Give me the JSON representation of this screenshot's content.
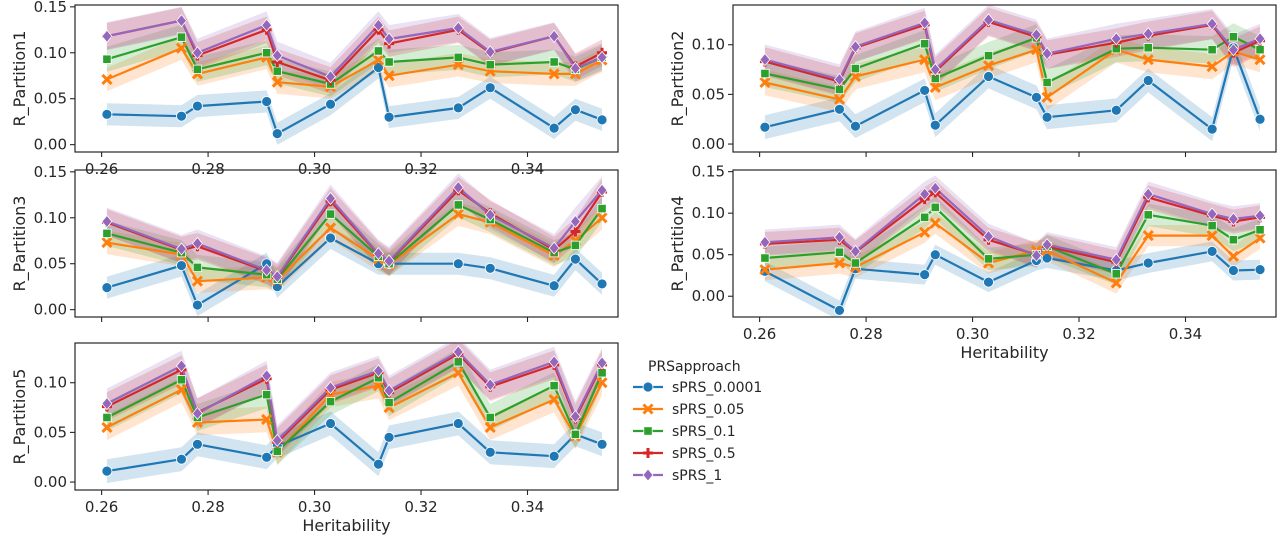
{
  "chart_data": [
    {
      "type": "line",
      "ylabel": "R_Partition1",
      "xlabel": "",
      "xlim": [
        0.255,
        0.357
      ],
      "ylim": [
        -0.008,
        0.152
      ],
      "xticks": [
        0.26,
        0.28,
        0.3,
        0.32,
        0.34
      ],
      "yticks": [
        0.0,
        0.05,
        0.1,
        0.15
      ],
      "x": [
        0.261,
        0.275,
        0.278,
        0.291,
        0.293,
        0.303,
        0.312,
        0.314,
        0.327,
        0.333,
        0.345,
        0.349,
        0.354
      ],
      "series": [
        {
          "name": "sPRS_0.0001",
          "values": [
            0.033,
            0.031,
            0.042,
            0.047,
            0.012,
            0.044,
            0.084,
            0.03,
            0.04,
            0.062,
            0.018,
            0.038,
            0.027
          ]
        },
        {
          "name": "sPRS_0.05",
          "values": [
            0.071,
            0.105,
            0.077,
            0.095,
            0.068,
            0.063,
            0.092,
            0.075,
            0.087,
            0.08,
            0.077,
            0.077,
            0.092
          ]
        },
        {
          "name": "sPRS_0.1",
          "values": [
            0.093,
            0.117,
            0.082,
            0.1,
            0.08,
            0.066,
            0.102,
            0.09,
            0.095,
            0.087,
            0.09,
            0.082,
            0.095
          ]
        },
        {
          "name": "sPRS_0.5",
          "values": [
            0.118,
            0.135,
            0.097,
            0.125,
            0.09,
            0.07,
            0.125,
            0.11,
            0.125,
            0.1,
            0.118,
            0.085,
            0.1
          ]
        },
        {
          "name": "sPRS_1",
          "values": [
            0.118,
            0.135,
            0.1,
            0.13,
            0.097,
            0.074,
            0.13,
            0.115,
            0.127,
            0.101,
            0.118,
            0.083,
            0.095
          ]
        }
      ]
    },
    {
      "type": "line",
      "ylabel": "R_Partition2",
      "xlabel": "",
      "xlim": [
        0.255,
        0.357
      ],
      "ylim": [
        -0.008,
        0.14
      ],
      "xticks": [
        0.26,
        0.28,
        0.3,
        0.32,
        0.34
      ],
      "yticks": [
        0.0,
        0.05,
        0.1
      ],
      "x": [
        0.261,
        0.275,
        0.278,
        0.291,
        0.293,
        0.303,
        0.312,
        0.314,
        0.327,
        0.333,
        0.345,
        0.349,
        0.354
      ],
      "series": [
        {
          "name": "sPRS_0.0001",
          "values": [
            0.017,
            0.035,
            0.018,
            0.054,
            0.019,
            0.068,
            0.047,
            0.027,
            0.034,
            0.064,
            0.015,
            0.097,
            0.025
          ]
        },
        {
          "name": "sPRS_0.05",
          "values": [
            0.062,
            0.045,
            0.068,
            0.085,
            0.057,
            0.079,
            0.095,
            0.047,
            0.095,
            0.085,
            0.078,
            0.093,
            0.085
          ]
        },
        {
          "name": "sPRS_0.1",
          "values": [
            0.071,
            0.055,
            0.076,
            0.101,
            0.066,
            0.089,
            0.107,
            0.062,
            0.096,
            0.097,
            0.095,
            0.108,
            0.095
          ]
        },
        {
          "name": "sPRS_0.5",
          "values": [
            0.083,
            0.063,
            0.097,
            0.12,
            0.073,
            0.123,
            0.108,
            0.09,
            0.102,
            0.109,
            0.12,
            0.092,
            0.104
          ]
        },
        {
          "name": "sPRS_1",
          "values": [
            0.085,
            0.065,
            0.098,
            0.122,
            0.075,
            0.125,
            0.11,
            0.091,
            0.106,
            0.111,
            0.121,
            0.095,
            0.106
          ]
        }
      ]
    },
    {
      "type": "line",
      "ylabel": "R_Partition3",
      "xlabel": "",
      "xlim": [
        0.255,
        0.357
      ],
      "ylim": [
        -0.008,
        0.152
      ],
      "xticks": [
        0.26,
        0.28,
        0.3,
        0.32,
        0.34
      ],
      "yticks": [
        0.0,
        0.05,
        0.1,
        0.15
      ],
      "x": [
        0.261,
        0.275,
        0.278,
        0.291,
        0.293,
        0.303,
        0.312,
        0.314,
        0.327,
        0.333,
        0.345,
        0.349,
        0.354
      ],
      "series": [
        {
          "name": "sPRS_0.0001",
          "values": [
            0.024,
            0.048,
            0.005,
            0.05,
            0.025,
            0.078,
            0.05,
            0.05,
            0.05,
            0.045,
            0.026,
            0.055,
            0.028
          ]
        },
        {
          "name": "sPRS_0.05",
          "values": [
            0.073,
            0.06,
            0.031,
            0.035,
            0.032,
            0.089,
            0.055,
            0.049,
            0.104,
            0.095,
            0.059,
            0.075,
            0.1
          ]
        },
        {
          "name": "sPRS_0.1",
          "values": [
            0.083,
            0.062,
            0.046,
            0.038,
            0.033,
            0.104,
            0.058,
            0.05,
            0.114,
            0.098,
            0.062,
            0.07,
            0.11
          ]
        },
        {
          "name": "sPRS_0.5",
          "values": [
            0.095,
            0.065,
            0.069,
            0.042,
            0.035,
            0.118,
            0.06,
            0.052,
            0.13,
            0.105,
            0.065,
            0.085,
            0.128
          ]
        },
        {
          "name": "sPRS_1",
          "values": [
            0.096,
            0.066,
            0.072,
            0.043,
            0.036,
            0.121,
            0.061,
            0.053,
            0.133,
            0.103,
            0.067,
            0.096,
            0.13
          ]
        }
      ]
    },
    {
      "type": "line",
      "ylabel": "R_Partition4",
      "xlabel": "Heritability",
      "xlim": [
        0.255,
        0.357
      ],
      "ylim": [
        -0.025,
        0.152
      ],
      "xticks": [
        0.26,
        0.28,
        0.3,
        0.32,
        0.34
      ],
      "yticks": [
        0.0,
        0.05,
        0.1,
        0.15
      ],
      "x": [
        0.261,
        0.275,
        0.278,
        0.291,
        0.293,
        0.303,
        0.312,
        0.314,
        0.327,
        0.333,
        0.345,
        0.349,
        0.354
      ],
      "series": [
        {
          "name": "sPRS_0.0001",
          "values": [
            0.03,
            -0.017,
            0.033,
            0.026,
            0.05,
            0.017,
            0.043,
            0.046,
            0.031,
            0.04,
            0.054,
            0.031,
            0.032
          ]
        },
        {
          "name": "sPRS_0.05",
          "values": [
            0.032,
            0.04,
            0.035,
            0.077,
            0.088,
            0.04,
            0.055,
            0.055,
            0.016,
            0.073,
            0.073,
            0.048,
            0.07
          ]
        },
        {
          "name": "sPRS_0.1",
          "values": [
            0.046,
            0.053,
            0.04,
            0.095,
            0.107,
            0.045,
            0.05,
            0.06,
            0.027,
            0.098,
            0.085,
            0.068,
            0.08
          ]
        },
        {
          "name": "sPRS_0.5",
          "values": [
            0.063,
            0.068,
            0.053,
            0.117,
            0.125,
            0.068,
            0.05,
            0.06,
            0.041,
            0.119,
            0.097,
            0.09,
            0.095
          ]
        },
        {
          "name": "sPRS_1",
          "values": [
            0.065,
            0.071,
            0.054,
            0.123,
            0.13,
            0.072,
            0.049,
            0.062,
            0.044,
            0.123,
            0.099,
            0.093,
            0.097
          ]
        }
      ]
    },
    {
      "type": "line",
      "ylabel": "R_Partition5",
      "xlabel": "Heritability",
      "xlim": [
        0.255,
        0.357
      ],
      "ylim": [
        -0.008,
        0.14
      ],
      "xticks": [
        0.26,
        0.28,
        0.3,
        0.32,
        0.34
      ],
      "yticks": [
        0.0,
        0.05,
        0.1
      ],
      "x": [
        0.261,
        0.275,
        0.278,
        0.291,
        0.293,
        0.303,
        0.312,
        0.314,
        0.327,
        0.333,
        0.345,
        0.349,
        0.354
      ],
      "series": [
        {
          "name": "sPRS_0.0001",
          "values": [
            0.011,
            0.023,
            0.038,
            0.025,
            0.036,
            0.059,
            0.018,
            0.045,
            0.059,
            0.03,
            0.026,
            0.048,
            0.038
          ]
        },
        {
          "name": "sPRS_0.05",
          "values": [
            0.055,
            0.093,
            0.06,
            0.063,
            0.03,
            0.088,
            0.097,
            0.075,
            0.11,
            0.055,
            0.083,
            0.046,
            0.1
          ]
        },
        {
          "name": "sPRS_0.1",
          "values": [
            0.065,
            0.103,
            0.065,
            0.088,
            0.031,
            0.081,
            0.105,
            0.08,
            0.121,
            0.065,
            0.097,
            0.048,
            0.11
          ]
        },
        {
          "name": "sPRS_0.5",
          "values": [
            0.076,
            0.113,
            0.07,
            0.104,
            0.04,
            0.093,
            0.11,
            0.09,
            0.129,
            0.096,
            0.118,
            0.064,
            0.118
          ]
        },
        {
          "name": "sPRS_1",
          "values": [
            0.079,
            0.117,
            0.069,
            0.107,
            0.042,
            0.095,
            0.112,
            0.092,
            0.131,
            0.098,
            0.121,
            0.066,
            0.12
          ]
        }
      ]
    }
  ],
  "legend": {
    "title": "PRSapproach",
    "placement": "bottom-right",
    "entries": [
      {
        "name": "sPRS_0.0001",
        "color": "#1f77b4",
        "marker": "circle"
      },
      {
        "name": "sPRS_0.05",
        "color": "#ff7f0e",
        "marker": "x"
      },
      {
        "name": "sPRS_0.1",
        "color": "#2ca02c",
        "marker": "square"
      },
      {
        "name": "sPRS_0.5",
        "color": "#d62728",
        "marker": "plus"
      },
      {
        "name": "sPRS_1",
        "color": "#9467bd",
        "marker": "diamond"
      }
    ]
  }
}
